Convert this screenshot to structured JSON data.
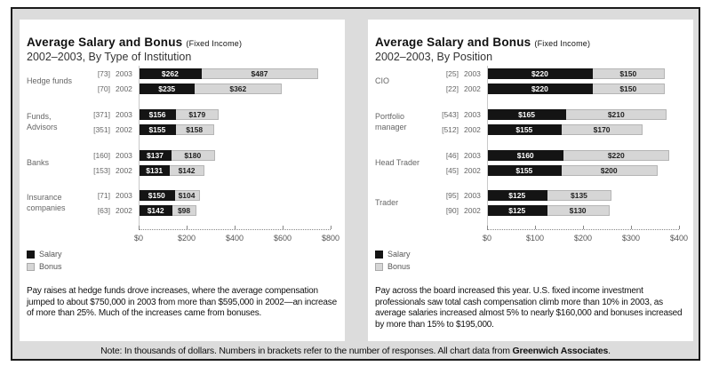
{
  "left_chart": {
    "title": "Average Salary and Bonus",
    "title_tag": "(Fixed Income)",
    "subtitle": "2002–2003, By Type of Institution",
    "groups": [
      {
        "label": "Hedge funds",
        "rows": [
          {
            "n": "[73]",
            "year": "2003",
            "salary": 262,
            "bonus": 487,
            "salary_label": "$262",
            "bonus_label": "$487"
          },
          {
            "n": "[70]",
            "year": "2002",
            "salary": 235,
            "bonus": 362,
            "salary_label": "$235",
            "bonus_label": "$362"
          }
        ]
      },
      {
        "label": "Funds,\nAdvisors",
        "rows": [
          {
            "n": "[371]",
            "year": "2003",
            "salary": 156,
            "bonus": 179,
            "salary_label": "$156",
            "bonus_label": "$179"
          },
          {
            "n": "[351]",
            "year": "2002",
            "salary": 155,
            "bonus": 158,
            "salary_label": "$155",
            "bonus_label": "$158"
          }
        ]
      },
      {
        "label": "Banks",
        "rows": [
          {
            "n": "[160]",
            "year": "2003",
            "salary": 137,
            "bonus": 180,
            "salary_label": "$137",
            "bonus_label": "$180"
          },
          {
            "n": "[153]",
            "year": "2002",
            "salary": 131,
            "bonus": 142,
            "salary_label": "$131",
            "bonus_label": "$142"
          }
        ]
      },
      {
        "label": "Insurance\ncompanies",
        "rows": [
          {
            "n": "[71]",
            "year": "2003",
            "salary": 150,
            "bonus": 104,
            "salary_label": "$150",
            "bonus_label": "$104"
          },
          {
            "n": "[63]",
            "year": "2002",
            "salary": 142,
            "bonus": 98,
            "salary_label": "$142",
            "bonus_label": "$98"
          }
        ]
      }
    ],
    "axis": {
      "max": 800,
      "ticks": [
        "$0",
        "$200",
        "$400",
        "$600",
        "$800"
      ]
    },
    "legend": {
      "salary": "Salary",
      "bonus": "Bonus"
    },
    "caption": "Pay raises at hedge funds drove increases, where the average compensation jumped to about $750,000 in 2003 from more than $595,000 in 2002—an increase of more than 25%. Much of the increases came from bonuses."
  },
  "right_chart": {
    "title": "Average Salary and Bonus",
    "title_tag": "(Fixed Income)",
    "subtitle": "2002–2003, By Position",
    "groups": [
      {
        "label": "CIO",
        "rows": [
          {
            "n": "[25]",
            "year": "2003",
            "salary": 220,
            "bonus": 150,
            "salary_label": "$220",
            "bonus_label": "$150"
          },
          {
            "n": "[22]",
            "year": "2002",
            "salary": 220,
            "bonus": 150,
            "salary_label": "$220",
            "bonus_label": "$150"
          }
        ]
      },
      {
        "label": "Portfolio\nmanager",
        "rows": [
          {
            "n": "[543]",
            "year": "2003",
            "salary": 165,
            "bonus": 210,
            "salary_label": "$165",
            "bonus_label": "$210"
          },
          {
            "n": "[512]",
            "year": "2002",
            "salary": 155,
            "bonus": 170,
            "salary_label": "$155",
            "bonus_label": "$170"
          }
        ]
      },
      {
        "label": "Head Trader",
        "rows": [
          {
            "n": "[46]",
            "year": "2003",
            "salary": 160,
            "bonus": 220,
            "salary_label": "$160",
            "bonus_label": "$220"
          },
          {
            "n": "[45]",
            "year": "2002",
            "salary": 155,
            "bonus": 200,
            "salary_label": "$155",
            "bonus_label": "$200"
          }
        ]
      },
      {
        "label": "Trader",
        "rows": [
          {
            "n": "[95]",
            "year": "2003",
            "salary": 125,
            "bonus": 135,
            "salary_label": "$125",
            "bonus_label": "$135"
          },
          {
            "n": "[90]",
            "year": "2002",
            "salary": 125,
            "bonus": 130,
            "salary_label": "$125",
            "bonus_label": "$130"
          }
        ]
      }
    ],
    "axis": {
      "max": 400,
      "ticks": [
        "$0",
        "$100",
        "$200",
        "$300",
        "$400"
      ]
    },
    "legend": {
      "salary": "Salary",
      "bonus": "Bonus"
    },
    "caption": "Pay across the board increased this year. U.S. fixed income investment professionals saw total cash compensation climb more than 10% in 2003, as average salaries increased almost 5% to nearly $160,000 and bonuses increased by more than 15% to $195,000."
  },
  "note": {
    "text": "Note: In thousands of dollars. Numbers in brackets refer to the number of responses. All chart data from ",
    "source": "Greenwich Associates",
    "end": "."
  },
  "colors": {
    "salary": "#141414",
    "bonus": "#d6d6d6",
    "background": "#dcdcdc"
  },
  "chart_data": [
    {
      "type": "bar",
      "orientation": "horizontal",
      "stacked": true,
      "title": "Average Salary and Bonus (Fixed Income)",
      "subtitle": "2002–2003, By Type of Institution",
      "categories": [
        "Hedge funds 2003 [73]",
        "Hedge funds 2002 [70]",
        "Funds, Advisors 2003 [371]",
        "Funds, Advisors 2002 [351]",
        "Banks 2003 [160]",
        "Banks 2002 [153]",
        "Insurance companies 2003 [71]",
        "Insurance companies 2002 [63]"
      ],
      "series": [
        {
          "name": "Salary",
          "values": [
            262,
            235,
            156,
            155,
            137,
            131,
            150,
            142
          ]
        },
        {
          "name": "Bonus",
          "values": [
            487,
            362,
            179,
            158,
            180,
            142,
            104,
            98
          ]
        }
      ],
      "xlabel": "In thousands of dollars",
      "xlim": [
        0,
        800
      ],
      "xticks": [
        "$0",
        "$200",
        "$400",
        "$600",
        "$800"
      ],
      "legend_position": "bottom-left",
      "grid": false
    },
    {
      "type": "bar",
      "orientation": "horizontal",
      "stacked": true,
      "title": "Average Salary and Bonus (Fixed Income)",
      "subtitle": "2002–2003, By Position",
      "categories": [
        "CIO 2003 [25]",
        "CIO 2002 [22]",
        "Portfolio manager 2003 [543]",
        "Portfolio manager 2002 [512]",
        "Head Trader 2003 [46]",
        "Head Trader 2002 [45]",
        "Trader 2003 [95]",
        "Trader 2002 [90]"
      ],
      "series": [
        {
          "name": "Salary",
          "values": [
            220,
            220,
            165,
            155,
            160,
            155,
            125,
            125
          ]
        },
        {
          "name": "Bonus",
          "values": [
            150,
            150,
            210,
            170,
            220,
            200,
            135,
            130
          ]
        }
      ],
      "xlabel": "In thousands of dollars",
      "xlim": [
        0,
        400
      ],
      "xticks": [
        "$0",
        "$100",
        "$200",
        "$300",
        "$400"
      ],
      "legend_position": "bottom-left",
      "grid": false
    }
  ]
}
